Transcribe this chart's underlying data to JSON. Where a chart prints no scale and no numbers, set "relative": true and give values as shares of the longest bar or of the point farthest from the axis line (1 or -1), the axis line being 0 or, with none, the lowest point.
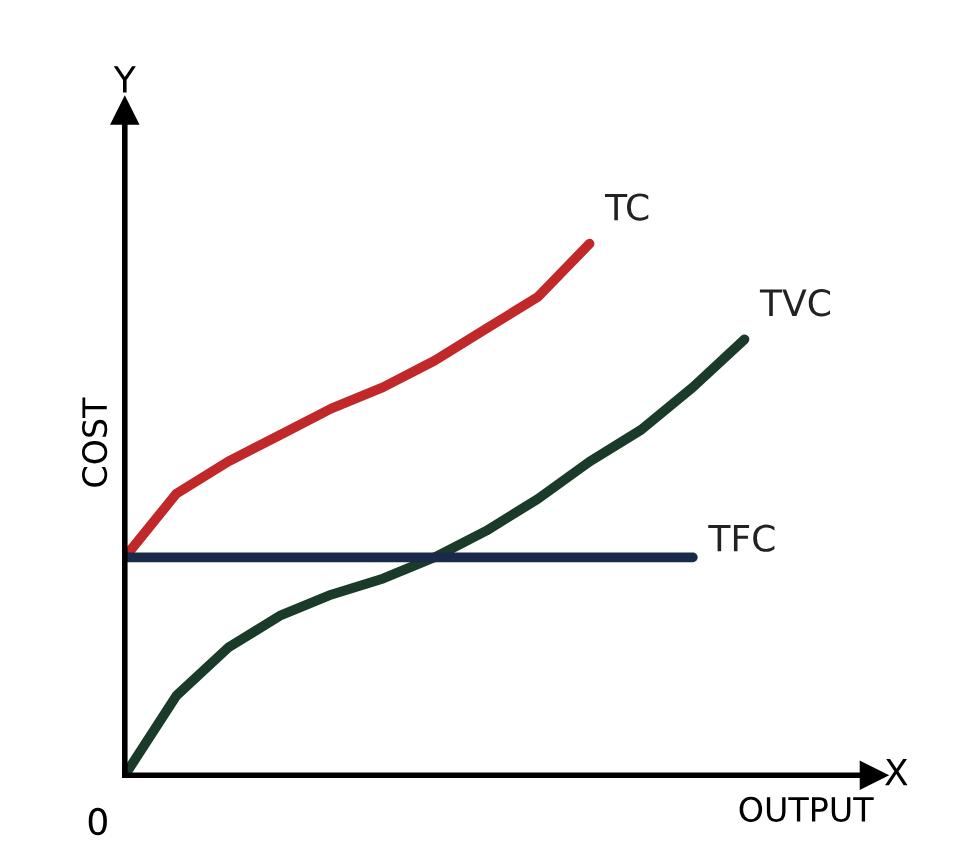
{
  "chart_data": {
    "type": "line",
    "relative": true,
    "xlabel": "OUTPUT",
    "ylabel": "COST",
    "annotations": [
      "0",
      "Y",
      "X"
    ],
    "categories": [
      null,
      null,
      null,
      null,
      null,
      null,
      null,
      null,
      null,
      null,
      null,
      null,
      null
    ],
    "series": [
      {
        "name": "TC",
        "color": "#c0282a",
        "values": [
          0.41,
          0.53,
          0.59,
          0.64,
          0.69,
          0.73,
          0.78,
          0.84,
          0.9,
          1.0,
          null,
          null,
          null
        ]
      },
      {
        "name": "TVC",
        "color": "#1a3a2a",
        "values": [
          0,
          0.15,
          0.24,
          0.3,
          0.34,
          0.37,
          0.41,
          0.46,
          0.52,
          0.59,
          0.65,
          0.73,
          0.82
        ]
      },
      {
        "name": "TFC",
        "color": "#1a2a4a",
        "values": [
          0.41,
          0.41,
          0.41,
          0.41,
          0.41,
          0.41,
          0.41,
          0.41,
          0.41,
          0.41,
          0.41,
          0.41,
          null
        ]
      }
    ],
    "grid": false,
    "legend": false
  }
}
